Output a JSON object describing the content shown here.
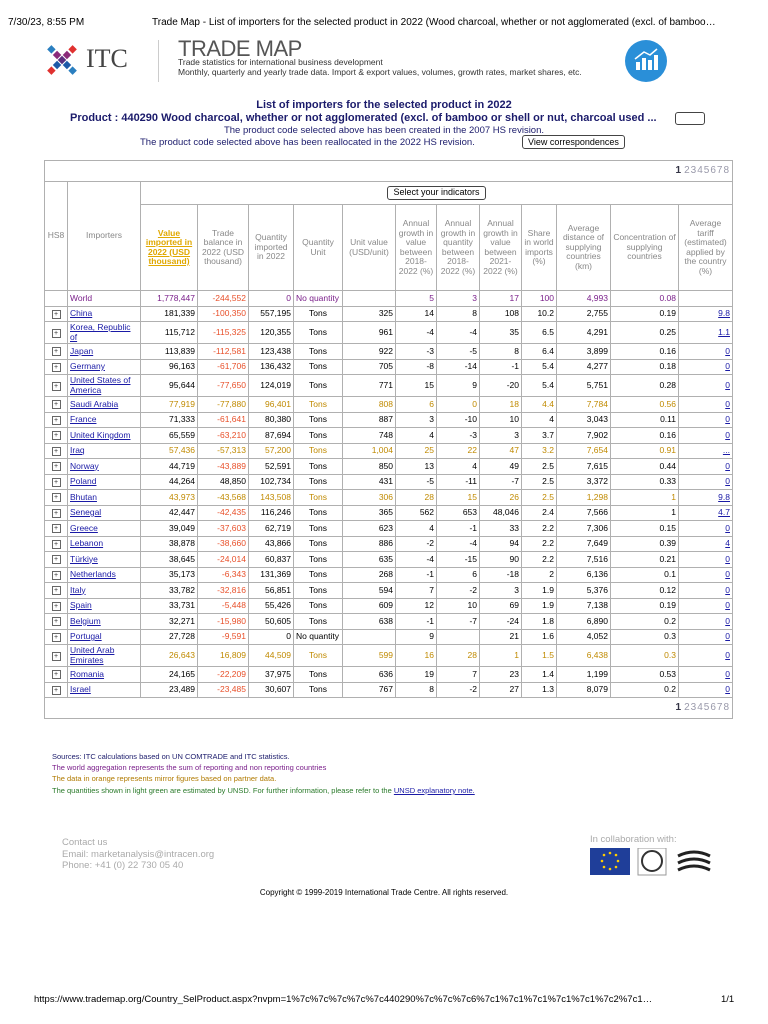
{
  "browser": {
    "datetime": "7/30/23, 8:55 PM",
    "tab_title": "Trade Map - List of importers for the selected product in 2022 (Wood charcoal, whether or not agglomerated (excl. of bamboo…",
    "url": "https://www.trademap.org/Country_SelProduct.aspx?nvpm=1%7c%7c%7c%7c%7c440290%7c%7c%7c6%7c1%7c1%7c1%7c1%7c1%7c2%7c1…",
    "page_count": "1/1"
  },
  "header": {
    "logo_text": "ITC",
    "brand": "TRADE MAP",
    "tagline": "Trade statistics for international business development",
    "description": "Monthly, quarterly and yearly trade data. Import & export values, volumes, growth rates, market shares, etc."
  },
  "intro": {
    "title": "List of importers for the selected product in 2022",
    "product": "Product : 440290 Wood charcoal, whether or not agglomerated (excl. of bamboo or shell or nut, charcoal used ...",
    "note1": "The product code selected above has been created in the 2007 HS revision.",
    "note2": "The product code selected above has been reallocated in the 2022 HS revision.",
    "button": "View correspondences"
  },
  "table": {
    "pages": [
      "1",
      "2",
      "3",
      "4",
      "5",
      "6",
      "7",
      "8"
    ],
    "indicators_button": "Select your indicators",
    "columns": [
      "HS8",
      "Importers",
      "Value imported in 2022 (USD thousand)",
      "Trade balance in 2022 (USD thousand)",
      "Quantity imported in 2022",
      "Quantity Unit",
      "Unit value (USD/unit)",
      "Annual growth in value between 2018-2022 (%)",
      "Annual growth in quantity between 2018-2022 (%)",
      "Annual growth in value between 2021-2022 (%)",
      "Share in world imports (%)",
      "Average distance of supplying countries (km)",
      "Concentration of supplying countries",
      "Average tariff (estimated) applied by the country (%)"
    ],
    "rows": [
      {
        "cells": [
          "World",
          "1,778,447",
          "-244,552",
          "0",
          "No quantity",
          null,
          "5",
          "3",
          "17",
          "100",
          "4,993",
          "0.08",
          null
        ]
      },
      {
        "cells": [
          "China",
          "181,339",
          "-100,350",
          "557,195",
          "Tons",
          "325",
          "14",
          "8",
          "108",
          "10.2",
          "2,755",
          "0.19",
          "9.8"
        ]
      },
      {
        "cells": [
          "Korea, Republic of",
          "115,712",
          "-115,325",
          "120,355",
          "Tons",
          "961",
          "-4",
          "-4",
          "35",
          "6.5",
          "4,291",
          "0.25",
          "1.1"
        ]
      },
      {
        "cells": [
          "Japan",
          "113,839",
          "-112,581",
          "123,438",
          "Tons",
          "922",
          "-3",
          "-5",
          "8",
          "6.4",
          "3,899",
          "0.16",
          "0"
        ]
      },
      {
        "cells": [
          "Germany",
          "96,163",
          "-61,706",
          "136,432",
          "Tons",
          "705",
          "-8",
          "-14",
          "-1",
          "5.4",
          "4,277",
          "0.18",
          "0"
        ]
      },
      {
        "cells": [
          "United States of America",
          "95,644",
          "-77,650",
          "124,019",
          "Tons",
          "771",
          "15",
          "9",
          "-20",
          "5.4",
          "5,751",
          "0.28",
          "0"
        ]
      },
      {
        "cells": [
          "Saudi Arabia",
          "77,919",
          "-77,880",
          "96,401",
          "Tons",
          "808",
          "6",
          "0",
          "18",
          "4.4",
          "7,784",
          "0.56",
          "0"
        ],
        "mirror": true
      },
      {
        "cells": [
          "France",
          "71,333",
          "-61,641",
          "80,380",
          "Tons",
          "887",
          "3",
          "-10",
          "10",
          "4",
          "3,043",
          "0.11",
          "0"
        ]
      },
      {
        "cells": [
          "United Kingdom",
          "65,559",
          "-63,210",
          "87,694",
          "Tons",
          "748",
          "4",
          "-3",
          "3",
          "3.7",
          "7,902",
          "0.16",
          "0"
        ]
      },
      {
        "cells": [
          "Iraq",
          "57,436",
          "-57,313",
          "57,200",
          "Tons",
          "1,004",
          "25",
          "22",
          "47",
          "3.2",
          "7,654",
          "0.91",
          "..."
        ],
        "mirror": true
      },
      {
        "cells": [
          "Norway",
          "44,719",
          "-43,889",
          "52,591",
          "Tons",
          "850",
          "13",
          "4",
          "49",
          "2.5",
          "7,615",
          "0.44",
          "0"
        ]
      },
      {
        "cells": [
          "Poland",
          "44,264",
          "48,850",
          "102,734",
          "Tons",
          "431",
          "-5",
          "-11",
          "-7",
          "2.5",
          "3,372",
          "0.33",
          "0"
        ]
      },
      {
        "cells": [
          "Bhutan",
          "43,973",
          "-43,568",
          "143,508",
          "Tons",
          "306",
          "28",
          "15",
          "26",
          "2.5",
          "1,298",
          "1",
          "9.8"
        ],
        "mirror": true
      },
      {
        "cells": [
          "Senegal",
          "42,447",
          "-42,435",
          "116,246",
          "Tons",
          "365",
          "562",
          "653",
          "48,046",
          "2.4",
          "7,566",
          "1",
          "4.7"
        ]
      },
      {
        "cells": [
          "Greece",
          "39,049",
          "-37,603",
          "62,719",
          "Tons",
          "623",
          "4",
          "-1",
          "33",
          "2.2",
          "7,306",
          "0.15",
          "0"
        ]
      },
      {
        "cells": [
          "Lebanon",
          "38,878",
          "-38,660",
          "43,866",
          "Tons",
          "886",
          "-2",
          "-4",
          "94",
          "2.2",
          "7,649",
          "0.39",
          "4"
        ]
      },
      {
        "cells": [
          "Türkiye",
          "38,645",
          "-24,014",
          "60,837",
          "Tons",
          "635",
          "-4",
          "-15",
          "90",
          "2.2",
          "7,516",
          "0.21",
          "0"
        ]
      },
      {
        "cells": [
          "Netherlands",
          "35,173",
          "-6,343",
          "131,369",
          "Tons",
          "268",
          "-1",
          "6",
          "-18",
          "2",
          "6,136",
          "0.1",
          "0"
        ]
      },
      {
        "cells": [
          "Italy",
          "33,782",
          "-32,816",
          "56,851",
          "Tons",
          "594",
          "7",
          "-2",
          "3",
          "1.9",
          "5,376",
          "0.12",
          "0"
        ]
      },
      {
        "cells": [
          "Spain",
          "33,731",
          "-5,448",
          "55,426",
          "Tons",
          "609",
          "12",
          "10",
          "69",
          "1.9",
          "7,138",
          "0.19",
          "0"
        ]
      },
      {
        "cells": [
          "Belgium",
          "32,271",
          "-15,980",
          "50,605",
          "Tons",
          "638",
          "-1",
          "-7",
          "-24",
          "1.8",
          "6,890",
          "0.2",
          "0"
        ]
      },
      {
        "cells": [
          "Portugal",
          "27,728",
          "-9,591",
          "0",
          "No quantity",
          null,
          "9",
          null,
          "21",
          "1.6",
          "4,052",
          "0.3",
          "0"
        ]
      },
      {
        "cells": [
          "United Arab Emirates",
          "26,643",
          "16,809",
          "44,509",
          "Tons",
          "599",
          "16",
          "28",
          "1",
          "1.5",
          "6,438",
          "0.3",
          "0"
        ],
        "mirror": true
      },
      {
        "cells": [
          "Romania",
          "24,165",
          "-22,209",
          "37,975",
          "Tons",
          "636",
          "19",
          "7",
          "23",
          "1.4",
          "1,199",
          "0.53",
          "0"
        ]
      },
      {
        "cells": [
          "Israel",
          "23,489",
          "-23,485",
          "30,607",
          "Tons",
          "767",
          "8",
          "-2",
          "27",
          "1.3",
          "8,079",
          "0.2",
          "0"
        ]
      }
    ]
  },
  "notes": {
    "sources": "Sources: ITC calculations based on UN COMTRADE and ITC statistics.",
    "world": "The world aggregation represents the sum of reporting and non reporting countries",
    "mirror": "The data in orange represents mirror figures based on partner data.",
    "green": "The quantities shown in light green are estimated by UNSD. For further information, please refer to the",
    "green_link": "UNSD explanatory note."
  },
  "footer": {
    "contact": "Contact us",
    "email": "Email: marketanalysis@intracen.org",
    "phone": "Phone: +41 (0) 22 730 05 40",
    "collab": "In collaboration with:",
    "copyright": "Copyright © 1999-2019 International Trade Centre. All rights reserved."
  }
}
